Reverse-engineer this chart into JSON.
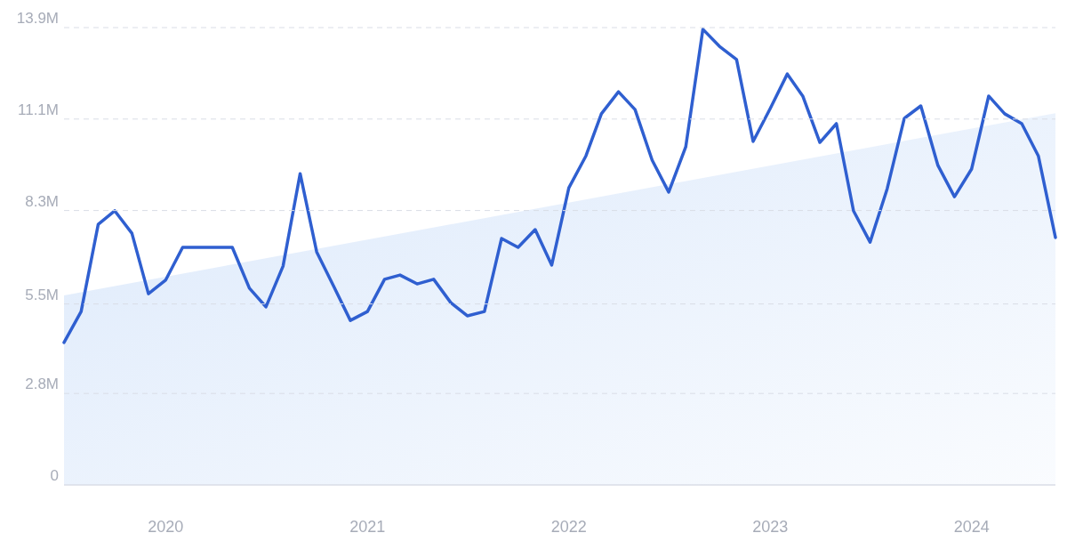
{
  "chart_data": {
    "type": "line",
    "x": [
      "2019-07",
      "2019-08",
      "2019-09",
      "2019-10",
      "2019-11",
      "2019-12",
      "2020-01",
      "2020-02",
      "2020-03",
      "2020-04",
      "2020-05",
      "2020-06",
      "2020-07",
      "2020-08",
      "2020-09",
      "2020-10",
      "2020-11",
      "2020-12",
      "2021-01",
      "2021-02",
      "2021-03",
      "2021-04",
      "2021-05",
      "2021-06",
      "2021-07",
      "2021-08",
      "2021-09",
      "2021-10",
      "2021-11",
      "2021-12",
      "2022-01",
      "2022-02",
      "2022-03",
      "2022-04",
      "2022-05",
      "2022-06",
      "2022-07",
      "2022-08",
      "2022-09",
      "2022-10",
      "2022-11",
      "2022-12",
      "2023-01",
      "2023-02",
      "2023-03",
      "2023-04",
      "2023-05",
      "2023-06",
      "2023-07",
      "2023-08",
      "2023-09",
      "2023-10",
      "2023-11",
      "2023-12",
      "2024-01",
      "2024-02",
      "2024-03",
      "2024-04",
      "2024-05",
      "2024-06"
    ],
    "series": [
      {
        "type": "area",
        "color": "#dce9fb",
        "x": [
          "2019-07",
          "2024-06"
        ],
        "values": [
          5.76,
          11.3
        ]
      },
      {
        "color": "#2f5fd0",
        "values": [
          4.33,
          5.27,
          7.92,
          8.33,
          7.65,
          5.81,
          6.22,
          7.22,
          7.22,
          7.22,
          7.22,
          5.98,
          5.41,
          6.65,
          9.46,
          7.08,
          6.03,
          5.0,
          5.27,
          6.25,
          6.38,
          6.11,
          6.25,
          5.54,
          5.14,
          5.27,
          7.49,
          7.22,
          7.76,
          6.68,
          9.03,
          10.0,
          11.28,
          11.95,
          11.41,
          9.87,
          8.9,
          10.28,
          13.85,
          13.33,
          12.93,
          10.44,
          11.44,
          12.49,
          11.82,
          10.41,
          10.98,
          8.33,
          7.38,
          9.0,
          11.14,
          11.52,
          9.71,
          8.76,
          9.6,
          11.82,
          11.28,
          10.98,
          10.0,
          7.52
        ]
      }
    ],
    "xlim": [
      "2019-07",
      "2024-06"
    ],
    "xticks": [
      "2020",
      "2021",
      "2022",
      "2023",
      "2024"
    ],
    "ylim": [
      0,
      13.9
    ],
    "yticks": [
      0,
      {
        "value": 2.78,
        "label": "2.8M"
      },
      {
        "value": 5.5,
        "label": "5.5M"
      },
      {
        "value": 8.34,
        "label": "8.3M"
      },
      {
        "value": 11.12,
        "label": "11.1M"
      },
      {
        "value": 13.9,
        "label": "13.9M"
      }
    ],
    "grid": "y",
    "marker": "none"
  }
}
